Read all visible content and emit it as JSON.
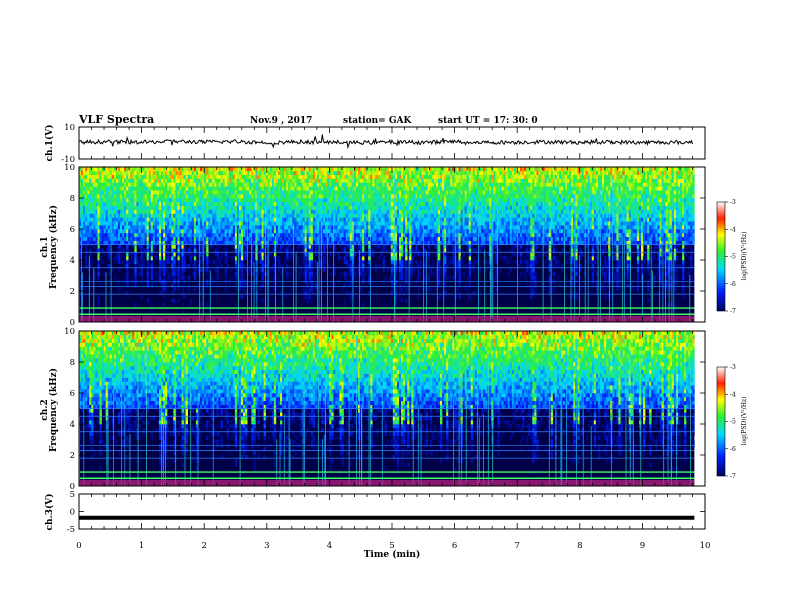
{
  "header": {
    "title": "VLF Spectra",
    "date": "Nov.9 , 2017",
    "station": "station= GAK",
    "start": "start UT = 17: 30: 0"
  },
  "chart_data": [
    {
      "type": "line",
      "panel": "ch1-waveform",
      "ylabel": "ch.1(V)",
      "ylim": [
        -10,
        10
      ],
      "yticks": [
        "10",
        "-10"
      ],
      "x": [
        0,
        0.5,
        1,
        1.5,
        2,
        2.5,
        3,
        3.5,
        4,
        4.5,
        5,
        5.5,
        6,
        6.5,
        7,
        7.5,
        8,
        8.5,
        9,
        9.5,
        9.8
      ],
      "y": [
        0.5,
        0.8,
        0.4,
        1.0,
        0.6,
        0.9,
        0.3,
        0.7,
        0.5,
        0.2,
        0.6,
        0.4,
        0.8,
        0.3,
        0.5,
        0.7,
        0.4,
        0.6,
        0.3,
        0.5,
        0.4
      ],
      "xlim": [
        0,
        10
      ]
    },
    {
      "type": "heatmap",
      "panel": "ch1-spectrogram",
      "ylabel": "Frequency (kHz)",
      "channel_label": "ch.1",
      "ylim": [
        0,
        10
      ],
      "yticks": [
        "0",
        "2",
        "4",
        "6",
        "8",
        "10"
      ],
      "xlim": [
        0,
        9.83
      ],
      "colorbar": {
        "label": "log(PSD)(V²/Hz)",
        "range": [
          -7,
          -3
        ],
        "ticks": [
          "-3",
          "-4",
          "-5",
          "-6",
          "-7"
        ]
      }
    },
    {
      "type": "heatmap",
      "panel": "ch2-spectrogram",
      "ylabel": "Frequency (kHz)",
      "channel_label": "ch.2",
      "ylim": [
        0,
        10
      ],
      "yticks": [
        "0",
        "2",
        "4",
        "6",
        "8",
        "10"
      ],
      "xlim": [
        0,
        9.83
      ],
      "colorbar": {
        "label": "log(PSD)(V²/Hz)",
        "range": [
          -7,
          -3
        ],
        "ticks": [
          "-3",
          "-4",
          "-5",
          "-6",
          "-7"
        ]
      }
    },
    {
      "type": "line",
      "panel": "ch3-waveform",
      "ylabel": "ch.3(V)",
      "ylim": [
        -5,
        5
      ],
      "yticks": [
        "5",
        "0",
        "-5"
      ],
      "x": [
        0,
        9.83
      ],
      "y": [
        -1.8,
        -1.8
      ],
      "xlim": [
        0,
        10
      ]
    }
  ],
  "xaxis": {
    "label": "Time (min)",
    "ticks": [
      "0",
      "1",
      "2",
      "3",
      "4",
      "5",
      "6",
      "7",
      "8",
      "9",
      "10"
    ]
  },
  "colors": {
    "low": "#00007a",
    "mid": "#00c8ff",
    "green": "#30e840",
    "high": "#ff2000"
  }
}
